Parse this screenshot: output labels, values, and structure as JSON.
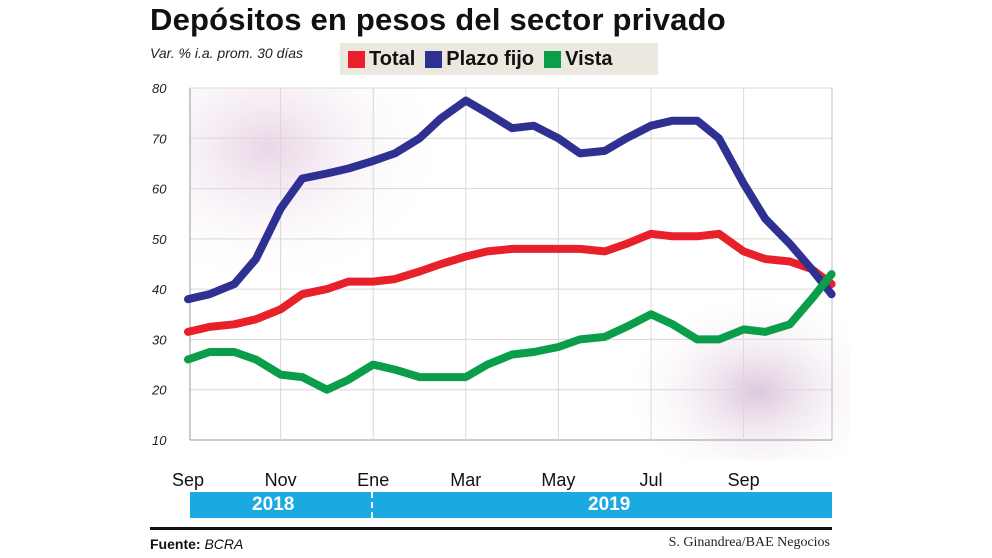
{
  "chart_data": {
    "type": "line",
    "title": "Depósitos en pesos del sector privado",
    "ylabel": "Var. % i.a. prom. 30 días",
    "ylim": [
      10,
      80
    ],
    "yticks": [
      "80",
      "70",
      "60",
      "50",
      "40",
      "30",
      "20",
      "10"
    ],
    "x_ticks": [
      "Sep",
      "Nov",
      "Ene",
      "Mar",
      "May",
      "Jul",
      "Sep"
    ],
    "years": [
      "2018",
      "2019"
    ],
    "grid": true,
    "legend_position": "top",
    "x": [
      "2018-09-01",
      "2018-09-15",
      "2018-10-01",
      "2018-10-15",
      "2018-11-01",
      "2018-11-15",
      "2018-12-01",
      "2018-12-15",
      "2019-01-01",
      "2019-01-15",
      "2019-02-01",
      "2019-02-15",
      "2019-03-01",
      "2019-03-15",
      "2019-04-01",
      "2019-04-15",
      "2019-05-01",
      "2019-05-15",
      "2019-06-01",
      "2019-06-15",
      "2019-07-01",
      "2019-07-15",
      "2019-08-01",
      "2019-08-15",
      "2019-09-01",
      "2019-09-15",
      "2019-10-01",
      "2019-10-15",
      "2019-10-28"
    ],
    "series": [
      {
        "name": "Total",
        "color": "#e8202a",
        "values": [
          31.5,
          32.5,
          33,
          34,
          36,
          39,
          40,
          41.5,
          41.5,
          42,
          43.5,
          45,
          46.5,
          47.5,
          48,
          48,
          48,
          48,
          47.5,
          49,
          51,
          50.5,
          50.5,
          51,
          47.5,
          46,
          45.5,
          44,
          41
        ]
      },
      {
        "name": "Plazo fijo",
        "color": "#2e3192",
        "values": [
          38,
          39,
          41,
          46,
          56,
          62,
          63,
          64,
          65.5,
          67,
          70,
          74,
          77.5,
          75,
          72,
          72.5,
          70,
          67,
          67.5,
          70,
          72.5,
          73.5,
          73.5,
          70,
          61,
          54,
          49,
          44,
          39
        ]
      },
      {
        "name": "Vista",
        "color": "#0a9e4a",
        "values": [
          26,
          27.5,
          27.5,
          26,
          23,
          22.5,
          20,
          22,
          25,
          24,
          22.5,
          22.5,
          22.5,
          25,
          27,
          27.5,
          28.5,
          30,
          30.5,
          32.5,
          35,
          33,
          30,
          30,
          32,
          31.5,
          33,
          38,
          43
        ]
      }
    ]
  },
  "footer": {
    "source_label": "Fuente:",
    "source": "BCRA",
    "credit": "S. Ginandrea/BAE Negocios"
  }
}
